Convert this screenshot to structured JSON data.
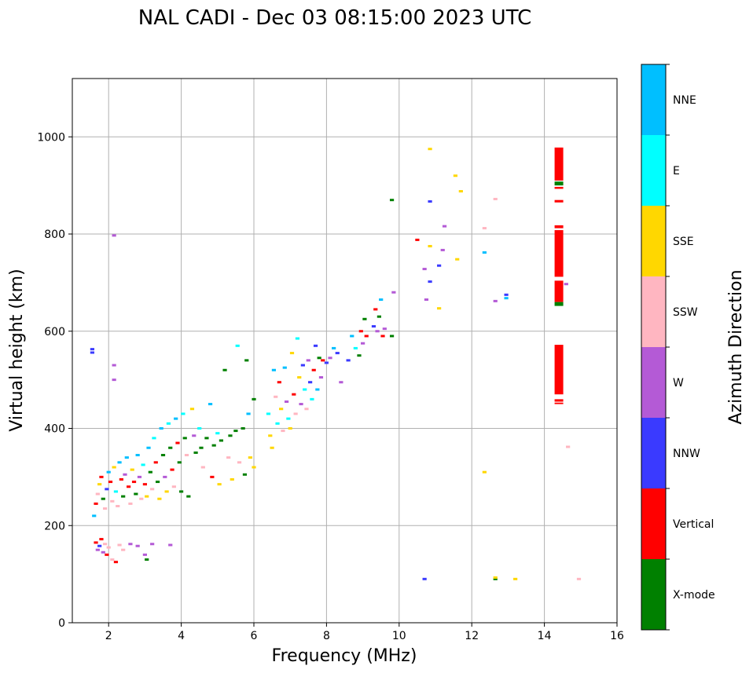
{
  "chart_data": {
    "type": "scatter",
    "title": "NAL CADI - Dec 03 08:15:00 2023 UTC",
    "xlabel": "Frequency (MHz)",
    "ylabel": "Virtual height (km)",
    "xlim": [
      1,
      16
    ],
    "ylim": [
      0,
      1120
    ],
    "xticks": [
      2,
      4,
      6,
      8,
      10,
      12,
      14,
      16
    ],
    "yticks": [
      0,
      200,
      400,
      600,
      800,
      1000
    ],
    "grid": true,
    "colorbar": {
      "label": "Azimuth Direction",
      "categories": [
        {
          "name": "X-mode",
          "color": "#008000"
        },
        {
          "name": "Vertical",
          "color": "#ff0000"
        },
        {
          "name": "NNW",
          "color": "#3a3aff"
        },
        {
          "name": "W",
          "color": "#b45ad6"
        },
        {
          "name": "SSW",
          "color": "#ffb6c1"
        },
        {
          "name": "SSE",
          "color": "#ffd700"
        },
        {
          "name": "E",
          "color": "#00ffff"
        },
        {
          "name": "NNE",
          "color": "#00bfff"
        }
      ]
    },
    "points": [
      {
        "f": 1.55,
        "h": 563,
        "c": "NNW"
      },
      {
        "f": 1.55,
        "h": 556,
        "c": "NNW"
      },
      {
        "f": 2.15,
        "h": 797,
        "c": "W"
      },
      {
        "f": 2.15,
        "h": 530,
        "c": "W"
      },
      {
        "f": 2.15,
        "h": 500,
        "c": "W"
      },
      {
        "f": 1.65,
        "h": 165,
        "c": "Vertical"
      },
      {
        "f": 1.7,
        "h": 150,
        "c": "W"
      },
      {
        "f": 1.75,
        "h": 158,
        "c": "NNW"
      },
      {
        "f": 1.8,
        "h": 172,
        "c": "Vertical"
      },
      {
        "f": 1.85,
        "h": 145,
        "c": "W"
      },
      {
        "f": 1.9,
        "h": 162,
        "c": "SSW"
      },
      {
        "f": 1.95,
        "h": 140,
        "c": "Vertical"
      },
      {
        "f": 2.0,
        "h": 155,
        "c": "SSW"
      },
      {
        "f": 2.1,
        "h": 130,
        "c": "SSW"
      },
      {
        "f": 2.2,
        "h": 125,
        "c": "Vertical"
      },
      {
        "f": 2.3,
        "h": 160,
        "c": "SSW"
      },
      {
        "f": 2.4,
        "h": 150,
        "c": "SSW"
      },
      {
        "f": 2.6,
        "h": 162,
        "c": "W"
      },
      {
        "f": 2.8,
        "h": 158,
        "c": "W"
      },
      {
        "f": 3.0,
        "h": 140,
        "c": "W"
      },
      {
        "f": 3.05,
        "h": 130,
        "c": "X-mode"
      },
      {
        "f": 3.2,
        "h": 162,
        "c": "W"
      },
      {
        "f": 3.7,
        "h": 160,
        "c": "W"
      },
      {
        "f": 1.6,
        "h": 220,
        "c": "NNE"
      },
      {
        "f": 1.65,
        "h": 245,
        "c": "Vertical"
      },
      {
        "f": 1.7,
        "h": 265,
        "c": "SSW"
      },
      {
        "f": 1.75,
        "h": 285,
        "c": "SSE"
      },
      {
        "f": 1.8,
        "h": 300,
        "c": "Vertical"
      },
      {
        "f": 1.85,
        "h": 255,
        "c": "X-mode"
      },
      {
        "f": 1.9,
        "h": 235,
        "c": "SSW"
      },
      {
        "f": 1.95,
        "h": 275,
        "c": "NNW"
      },
      {
        "f": 2.0,
        "h": 310,
        "c": "NNE"
      },
      {
        "f": 2.05,
        "h": 290,
        "c": "Vertical"
      },
      {
        "f": 2.1,
        "h": 250,
        "c": "SSW"
      },
      {
        "f": 2.15,
        "h": 320,
        "c": "SSE"
      },
      {
        "f": 2.2,
        "h": 270,
        "c": "E"
      },
      {
        "f": 2.25,
        "h": 240,
        "c": "SSW"
      },
      {
        "f": 2.3,
        "h": 330,
        "c": "NNE"
      },
      {
        "f": 2.35,
        "h": 295,
        "c": "Vertical"
      },
      {
        "f": 2.4,
        "h": 260,
        "c": "X-mode"
      },
      {
        "f": 2.45,
        "h": 305,
        "c": "W"
      },
      {
        "f": 2.5,
        "h": 340,
        "c": "NNE"
      },
      {
        "f": 2.55,
        "h": 280,
        "c": "Vertical"
      },
      {
        "f": 2.6,
        "h": 245,
        "c": "SSW"
      },
      {
        "f": 2.65,
        "h": 315,
        "c": "SSE"
      },
      {
        "f": 2.7,
        "h": 290,
        "c": "Vertical"
      },
      {
        "f": 2.75,
        "h": 265,
        "c": "X-mode"
      },
      {
        "f": 2.8,
        "h": 345,
        "c": "NNE"
      },
      {
        "f": 2.85,
        "h": 300,
        "c": "W"
      },
      {
        "f": 2.9,
        "h": 255,
        "c": "SSW"
      },
      {
        "f": 2.95,
        "h": 325,
        "c": "E"
      },
      {
        "f": 3.0,
        "h": 285,
        "c": "Vertical"
      },
      {
        "f": 3.05,
        "h": 260,
        "c": "SSE"
      },
      {
        "f": 3.1,
        "h": 360,
        "c": "NNE"
      },
      {
        "f": 3.15,
        "h": 310,
        "c": "X-mode"
      },
      {
        "f": 3.2,
        "h": 275,
        "c": "SSW"
      },
      {
        "f": 3.25,
        "h": 380,
        "c": "E"
      },
      {
        "f": 3.3,
        "h": 330,
        "c": "Vertical"
      },
      {
        "f": 3.35,
        "h": 290,
        "c": "X-mode"
      },
      {
        "f": 3.4,
        "h": 255,
        "c": "SSE"
      },
      {
        "f": 3.45,
        "h": 400,
        "c": "NNE"
      },
      {
        "f": 3.5,
        "h": 345,
        "c": "X-mode"
      },
      {
        "f": 3.55,
        "h": 300,
        "c": "W"
      },
      {
        "f": 3.6,
        "h": 270,
        "c": "SSE"
      },
      {
        "f": 3.65,
        "h": 410,
        "c": "E"
      },
      {
        "f": 3.7,
        "h": 360,
        "c": "X-mode"
      },
      {
        "f": 3.75,
        "h": 315,
        "c": "Vertical"
      },
      {
        "f": 3.8,
        "h": 280,
        "c": "SSW"
      },
      {
        "f": 3.85,
        "h": 420,
        "c": "NNE"
      },
      {
        "f": 3.9,
        "h": 370,
        "c": "Vertical"
      },
      {
        "f": 3.95,
        "h": 330,
        "c": "X-mode"
      },
      {
        "f": 4.0,
        "h": 270,
        "c": "X-mode"
      },
      {
        "f": 4.05,
        "h": 430,
        "c": "E"
      },
      {
        "f": 4.1,
        "h": 380,
        "c": "X-mode"
      },
      {
        "f": 4.15,
        "h": 345,
        "c": "SSW"
      },
      {
        "f": 4.2,
        "h": 260,
        "c": "X-mode"
      },
      {
        "f": 4.3,
        "h": 440,
        "c": "SSE"
      },
      {
        "f": 4.35,
        "h": 385,
        "c": "W"
      },
      {
        "f": 4.4,
        "h": 350,
        "c": "X-mode"
      },
      {
        "f": 4.5,
        "h": 400,
        "c": "E"
      },
      {
        "f": 4.55,
        "h": 360,
        "c": "X-mode"
      },
      {
        "f": 4.6,
        "h": 320,
        "c": "SSW"
      },
      {
        "f": 4.7,
        "h": 380,
        "c": "X-mode"
      },
      {
        "f": 4.8,
        "h": 450,
        "c": "NNE"
      },
      {
        "f": 4.85,
        "h": 300,
        "c": "Vertical"
      },
      {
        "f": 4.9,
        "h": 365,
        "c": "X-mode"
      },
      {
        "f": 5.0,
        "h": 390,
        "c": "E"
      },
      {
        "f": 5.05,
        "h": 285,
        "c": "SSE"
      },
      {
        "f": 5.1,
        "h": 375,
        "c": "X-mode"
      },
      {
        "f": 5.2,
        "h": 520,
        "c": "X-mode"
      },
      {
        "f": 5.3,
        "h": 340,
        "c": "SSW"
      },
      {
        "f": 5.35,
        "h": 385,
        "c": "X-mode"
      },
      {
        "f": 5.4,
        "h": 295,
        "c": "SSE"
      },
      {
        "f": 5.5,
        "h": 395,
        "c": "X-mode"
      },
      {
        "f": 5.55,
        "h": 570,
        "c": "E"
      },
      {
        "f": 5.6,
        "h": 330,
        "c": "SSW"
      },
      {
        "f": 5.7,
        "h": 400,
        "c": "X-mode"
      },
      {
        "f": 5.75,
        "h": 305,
        "c": "X-mode"
      },
      {
        "f": 5.8,
        "h": 540,
        "c": "X-mode"
      },
      {
        "f": 5.85,
        "h": 430,
        "c": "NNE"
      },
      {
        "f": 5.9,
        "h": 340,
        "c": "SSE"
      },
      {
        "f": 6.0,
        "h": 460,
        "c": "X-mode"
      },
      {
        "f": 6.0,
        "h": 320,
        "c": "SSE"
      },
      {
        "f": 6.4,
        "h": 430,
        "c": "E"
      },
      {
        "f": 6.45,
        "h": 385,
        "c": "SSE"
      },
      {
        "f": 6.5,
        "h": 360,
        "c": "SSE"
      },
      {
        "f": 6.55,
        "h": 520,
        "c": "NNE"
      },
      {
        "f": 6.6,
        "h": 465,
        "c": "SSW"
      },
      {
        "f": 6.65,
        "h": 410,
        "c": "E"
      },
      {
        "f": 6.7,
        "h": 495,
        "c": "Vertical"
      },
      {
        "f": 6.75,
        "h": 440,
        "c": "SSE"
      },
      {
        "f": 6.8,
        "h": 395,
        "c": "SSW"
      },
      {
        "f": 6.85,
        "h": 525,
        "c": "NNE"
      },
      {
        "f": 6.9,
        "h": 455,
        "c": "W"
      },
      {
        "f": 6.95,
        "h": 420,
        "c": "E"
      },
      {
        "f": 7.0,
        "h": 400,
        "c": "SSE"
      },
      {
        "f": 7.05,
        "h": 555,
        "c": "SSE"
      },
      {
        "f": 7.1,
        "h": 470,
        "c": "Vertical"
      },
      {
        "f": 7.15,
        "h": 430,
        "c": "SSW"
      },
      {
        "f": 7.2,
        "h": 585,
        "c": "E"
      },
      {
        "f": 7.25,
        "h": 505,
        "c": "SSE"
      },
      {
        "f": 7.3,
        "h": 450,
        "c": "W"
      },
      {
        "f": 7.35,
        "h": 530,
        "c": "NNW"
      },
      {
        "f": 7.4,
        "h": 480,
        "c": "E"
      },
      {
        "f": 7.45,
        "h": 440,
        "c": "SSW"
      },
      {
        "f": 7.5,
        "h": 540,
        "c": "W"
      },
      {
        "f": 7.55,
        "h": 495,
        "c": "NNW"
      },
      {
        "f": 7.6,
        "h": 460,
        "c": "E"
      },
      {
        "f": 7.65,
        "h": 520,
        "c": "Vertical"
      },
      {
        "f": 7.7,
        "h": 570,
        "c": "NNW"
      },
      {
        "f": 7.75,
        "h": 480,
        "c": "NNE"
      },
      {
        "f": 7.8,
        "h": 545,
        "c": "X-mode"
      },
      {
        "f": 7.85,
        "h": 505,
        "c": "W"
      },
      {
        "f": 7.9,
        "h": 540,
        "c": "Vertical"
      },
      {
        "f": 8.0,
        "h": 535,
        "c": "NNW"
      },
      {
        "f": 8.1,
        "h": 545,
        "c": "W"
      },
      {
        "f": 8.2,
        "h": 565,
        "c": "NNE"
      },
      {
        "f": 8.3,
        "h": 555,
        "c": "NNW"
      },
      {
        "f": 8.4,
        "h": 495,
        "c": "W"
      },
      {
        "f": 8.6,
        "h": 540,
        "c": "NNW"
      },
      {
        "f": 8.7,
        "h": 590,
        "c": "NNE"
      },
      {
        "f": 8.8,
        "h": 565,
        "c": "E"
      },
      {
        "f": 8.9,
        "h": 550,
        "c": "X-mode"
      },
      {
        "f": 8.95,
        "h": 600,
        "c": "Vertical"
      },
      {
        "f": 9.0,
        "h": 575,
        "c": "W"
      },
      {
        "f": 9.05,
        "h": 625,
        "c": "X-mode"
      },
      {
        "f": 9.1,
        "h": 590,
        "c": "Vertical"
      },
      {
        "f": 9.3,
        "h": 610,
        "c": "NNW"
      },
      {
        "f": 9.35,
        "h": 645,
        "c": "Vertical"
      },
      {
        "f": 9.4,
        "h": 600,
        "c": "W"
      },
      {
        "f": 9.45,
        "h": 630,
        "c": "X-mode"
      },
      {
        "f": 9.5,
        "h": 665,
        "c": "NNE"
      },
      {
        "f": 9.55,
        "h": 590,
        "c": "Vertical"
      },
      {
        "f": 9.6,
        "h": 605,
        "c": "W"
      },
      {
        "f": 9.8,
        "h": 590,
        "c": "X-mode"
      },
      {
        "f": 9.85,
        "h": 680,
        "c": "W"
      },
      {
        "f": 9.8,
        "h": 870,
        "c": "X-mode"
      },
      {
        "f": 10.5,
        "h": 788,
        "c": "Vertical"
      },
      {
        "f": 10.7,
        "h": 728,
        "c": "W"
      },
      {
        "f": 10.75,
        "h": 665,
        "c": "W"
      },
      {
        "f": 10.85,
        "h": 975,
        "c": "SSE"
      },
      {
        "f": 10.85,
        "h": 867,
        "c": "NNW"
      },
      {
        "f": 10.85,
        "h": 775,
        "c": "SSE"
      },
      {
        "f": 10.85,
        "h": 702,
        "c": "NNW"
      },
      {
        "f": 11.1,
        "h": 647,
        "c": "SSE"
      },
      {
        "f": 11.25,
        "h": 816,
        "c": "W"
      },
      {
        "f": 11.2,
        "h": 767,
        "c": "W"
      },
      {
        "f": 11.1,
        "h": 735,
        "c": "NNW"
      },
      {
        "f": 11.55,
        "h": 920,
        "c": "SSE"
      },
      {
        "f": 11.6,
        "h": 748,
        "c": "SSE"
      },
      {
        "f": 11.7,
        "h": 888,
        "c": "SSE"
      },
      {
        "f": 12.35,
        "h": 812,
        "c": "SSW"
      },
      {
        "f": 12.35,
        "h": 762,
        "c": "NNE"
      },
      {
        "f": 12.65,
        "h": 872,
        "c": "SSW"
      },
      {
        "f": 12.65,
        "h": 662,
        "c": "W"
      },
      {
        "f": 12.95,
        "h": 675,
        "c": "NNW"
      },
      {
        "f": 12.95,
        "h": 668,
        "c": "NNE"
      },
      {
        "f": 12.35,
        "h": 310,
        "c": "SSE"
      },
      {
        "f": 12.65,
        "h": 90,
        "c": "X-mode"
      },
      {
        "f": 12.65,
        "h": 93,
        "c": "SSE"
      },
      {
        "f": 13.2,
        "h": 90,
        "c": "SSE"
      },
      {
        "f": 10.7,
        "h": 90,
        "c": "NNW"
      },
      {
        "f": 14.65,
        "h": 362,
        "c": "SSW"
      },
      {
        "f": 14.95,
        "h": 90,
        "c": "SSW"
      },
      {
        "f": 14.6,
        "h": 697,
        "c": "W"
      }
    ],
    "bars": [
      {
        "f": 14.4,
        "h0": 910,
        "h1": 978,
        "c": "Vertical"
      },
      {
        "f": 14.4,
        "h0": 900,
        "h1": 908,
        "c": "X-mode"
      },
      {
        "f": 14.4,
        "h0": 893,
        "h1": 897,
        "c": "Vertical"
      },
      {
        "f": 14.4,
        "h0": 865,
        "h1": 870,
        "c": "Vertical"
      },
      {
        "f": 14.4,
        "h0": 812,
        "h1": 818,
        "c": "Vertical"
      },
      {
        "f": 14.4,
        "h0": 712,
        "h1": 808,
        "c": "Vertical"
      },
      {
        "f": 14.4,
        "h0": 660,
        "h1": 704,
        "c": "Vertical"
      },
      {
        "f": 14.4,
        "h0": 652,
        "h1": 660,
        "c": "X-mode"
      },
      {
        "f": 14.4,
        "h0": 470,
        "h1": 572,
        "c": "Vertical"
      },
      {
        "f": 14.4,
        "h0": 455,
        "h1": 460,
        "c": "Vertical"
      },
      {
        "f": 14.4,
        "h0": 450,
        "h1": 453,
        "c": "Vertical"
      }
    ]
  }
}
